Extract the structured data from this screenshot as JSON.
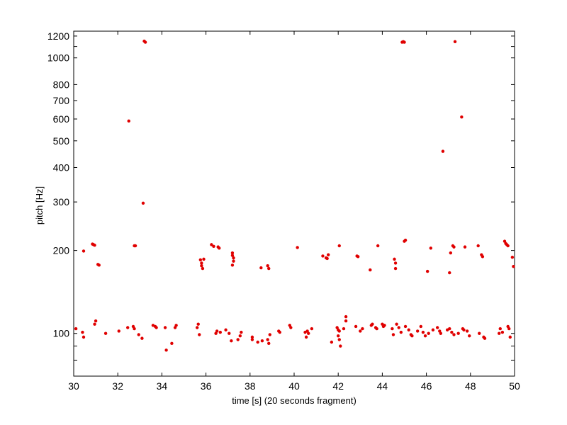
{
  "chart_data": {
    "type": "scatter",
    "xlabel": "time [s] (20 seconds fragment)",
    "ylabel": "pitch [Hz]",
    "xlim": [
      30,
      50
    ],
    "ylim": [
      70,
      1250
    ],
    "yscale": "log",
    "grid": false,
    "legend": "none",
    "marker_color": "#e00000",
    "x_ticks": [
      30,
      32,
      34,
      36,
      38,
      40,
      42,
      44,
      46,
      48,
      50
    ],
    "y_ticks_labeled": [
      100,
      200,
      300,
      400,
      500,
      600,
      700,
      800,
      1000,
      1200
    ],
    "y_ticks_minor": [
      80,
      90,
      1100
    ],
    "series": [
      {
        "points": [
          [
            30.1,
            104
          ],
          [
            30.4,
            101
          ],
          [
            30.45,
            97
          ],
          [
            30.45,
            199
          ],
          [
            30.85,
            211
          ],
          [
            30.9,
            210
          ],
          [
            30.95,
            209
          ],
          [
            30.95,
            108
          ],
          [
            31.0,
            111
          ],
          [
            31.1,
            178
          ],
          [
            31.15,
            177
          ],
          [
            31.45,
            100
          ],
          [
            32.05,
            102
          ],
          [
            32.45,
            105
          ],
          [
            32.5,
            590
          ],
          [
            32.7,
            106
          ],
          [
            32.75,
            104
          ],
          [
            32.75,
            208
          ],
          [
            32.8,
            208
          ],
          [
            32.95,
            99
          ],
          [
            33.1,
            96
          ],
          [
            33.15,
            297
          ],
          [
            33.2,
            1150
          ],
          [
            33.25,
            1140
          ],
          [
            33.6,
            107
          ],
          [
            33.7,
            106
          ],
          [
            33.75,
            105
          ],
          [
            34.15,
            105
          ],
          [
            34.2,
            87
          ],
          [
            34.45,
            92
          ],
          [
            34.6,
            105
          ],
          [
            34.65,
            107
          ],
          [
            35.6,
            105
          ],
          [
            35.65,
            108
          ],
          [
            35.7,
            99
          ],
          [
            35.75,
            185
          ],
          [
            35.8,
            180
          ],
          [
            35.8,
            176
          ],
          [
            35.85,
            172
          ],
          [
            35.9,
            186
          ],
          [
            36.25,
            210
          ],
          [
            36.35,
            207
          ],
          [
            36.45,
            100
          ],
          [
            36.5,
            102
          ],
          [
            36.55,
            206
          ],
          [
            36.6,
            204
          ],
          [
            36.65,
            101
          ],
          [
            36.9,
            103
          ],
          [
            37.05,
            100
          ],
          [
            37.15,
            94
          ],
          [
            37.2,
            196
          ],
          [
            37.2,
            192
          ],
          [
            37.25,
            188
          ],
          [
            37.25,
            183
          ],
          [
            37.2,
            177
          ],
          [
            37.45,
            95
          ],
          [
            37.55,
            98
          ],
          [
            37.6,
            101
          ],
          [
            38.1,
            97
          ],
          [
            38.1,
            95
          ],
          [
            38.35,
            93
          ],
          [
            38.5,
            173
          ],
          [
            38.55,
            94
          ],
          [
            38.8,
            176
          ],
          [
            38.85,
            172
          ],
          [
            38.8,
            95
          ],
          [
            38.85,
            92
          ],
          [
            38.9,
            99
          ],
          [
            39.3,
            102
          ],
          [
            39.35,
            101
          ],
          [
            39.8,
            107
          ],
          [
            39.85,
            105
          ],
          [
            40.15,
            205
          ],
          [
            40.5,
            101
          ],
          [
            40.55,
            97
          ],
          [
            40.6,
            102
          ],
          [
            40.65,
            100
          ],
          [
            40.8,
            104
          ],
          [
            41.3,
            191
          ],
          [
            41.45,
            188
          ],
          [
            41.5,
            187
          ],
          [
            41.55,
            193
          ],
          [
            41.7,
            93
          ],
          [
            41.95,
            105
          ],
          [
            42.0,
            103
          ],
          [
            42.05,
            102
          ],
          [
            42.0,
            98
          ],
          [
            42.05,
            95
          ],
          [
            42.1,
            90
          ],
          [
            42.05,
            208
          ],
          [
            42.25,
            104
          ],
          [
            42.35,
            115
          ],
          [
            42.35,
            111
          ],
          [
            42.8,
            106
          ],
          [
            42.85,
            191
          ],
          [
            42.9,
            190
          ],
          [
            43.0,
            102
          ],
          [
            43.1,
            104
          ],
          [
            43.45,
            170
          ],
          [
            43.5,
            107
          ],
          [
            43.55,
            108
          ],
          [
            43.7,
            105
          ],
          [
            43.75,
            104
          ],
          [
            43.8,
            208
          ],
          [
            44.0,
            108
          ],
          [
            44.05,
            106
          ],
          [
            44.1,
            107
          ],
          [
            44.45,
            104
          ],
          [
            44.5,
            99
          ],
          [
            44.55,
            186
          ],
          [
            44.6,
            180
          ],
          [
            44.6,
            172
          ],
          [
            44.65,
            108
          ],
          [
            44.75,
            105
          ],
          [
            44.85,
            101
          ],
          [
            44.9,
            1140
          ],
          [
            44.95,
            1145
          ],
          [
            45.0,
            1140
          ],
          [
            45.0,
            216
          ],
          [
            45.05,
            218
          ],
          [
            45.05,
            106
          ],
          [
            45.2,
            103
          ],
          [
            45.3,
            99
          ],
          [
            45.35,
            98
          ],
          [
            45.6,
            102
          ],
          [
            45.75,
            106
          ],
          [
            45.85,
            101
          ],
          [
            45.95,
            98
          ],
          [
            46.05,
            168
          ],
          [
            46.1,
            100
          ],
          [
            46.2,
            204
          ],
          [
            46.3,
            103
          ],
          [
            46.5,
            105
          ],
          [
            46.6,
            102
          ],
          [
            46.65,
            100
          ],
          [
            46.75,
            458
          ],
          [
            46.95,
            103
          ],
          [
            47.05,
            104
          ],
          [
            47.05,
            166
          ],
          [
            47.1,
            196
          ],
          [
            47.15,
            101
          ],
          [
            47.2,
            208
          ],
          [
            47.25,
            206
          ],
          [
            47.25,
            99
          ],
          [
            47.3,
            1145
          ],
          [
            47.45,
            100
          ],
          [
            47.6,
            610
          ],
          [
            47.65,
            104
          ],
          [
            47.7,
            103
          ],
          [
            47.75,
            206
          ],
          [
            47.85,
            102
          ],
          [
            47.95,
            98
          ],
          [
            48.35,
            208
          ],
          [
            48.4,
            100
          ],
          [
            48.5,
            193
          ],
          [
            48.55,
            190
          ],
          [
            48.6,
            97
          ],
          [
            48.65,
            96
          ],
          [
            49.3,
            100
          ],
          [
            49.35,
            104
          ],
          [
            49.45,
            101
          ],
          [
            49.55,
            216
          ],
          [
            49.6,
            212
          ],
          [
            49.65,
            210
          ],
          [
            49.7,
            208
          ],
          [
            49.7,
            106
          ],
          [
            49.75,
            104
          ],
          [
            49.8,
            97
          ],
          [
            49.9,
            189
          ],
          [
            49.95,
            175
          ]
        ]
      }
    ]
  }
}
